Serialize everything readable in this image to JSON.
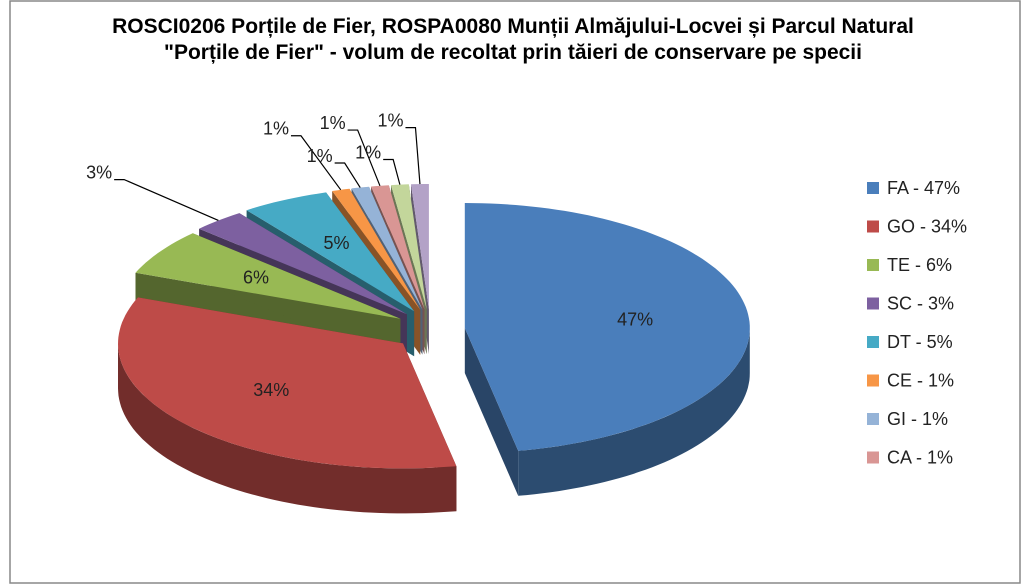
{
  "chart_data": {
    "type": "pie3d",
    "title": "ROSCI0206 Porțile de Fier, ROSPA0080 Munții Almăjului-Locvei și Parcul Natural \"Porțile de Fier\" - volum de recoltat prin tăieri de conservare pe specii",
    "categories": [
      "FA - 47%",
      "GO - 34%",
      "TE - 6%",
      "SC - 3%",
      "DT - 5%",
      "CE - 1%",
      "GI - 1%",
      "CA - 1%",
      null,
      null
    ],
    "values": [
      47,
      34,
      6,
      3,
      5,
      1,
      1,
      1,
      1,
      1
    ],
    "value_labels": [
      "47%",
      "34%",
      "6%",
      "3%",
      "5%",
      "1%",
      "1%",
      "1%",
      "1%",
      "1%"
    ],
    "colors": [
      "#4a7ebb",
      "#be4b48",
      "#98b954",
      "#7d60a0",
      "#46aac5",
      "#f79646",
      "#95b3d7",
      "#d99694",
      "#c3d69b",
      "#b3a2c7"
    ],
    "legend": "right"
  }
}
